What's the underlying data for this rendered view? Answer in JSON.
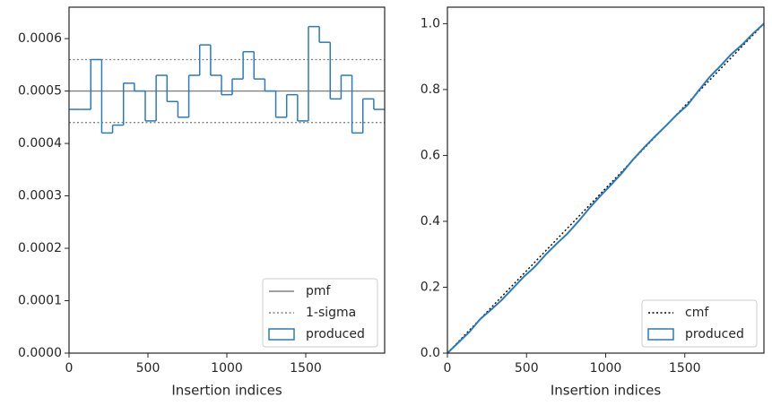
{
  "chart_data": [
    {
      "type": "histogram",
      "xlabel": "Insertion indices",
      "bins": [
        0,
        69,
        138,
        207,
        276,
        345,
        414,
        483,
        552,
        621,
        690,
        759,
        828,
        897,
        966,
        1034,
        1103,
        1172,
        1241,
        1310,
        1379,
        1448,
        1517,
        1586,
        1655,
        1724,
        1793,
        1862,
        1931,
        2000
      ],
      "series": [
        {
          "name": "produced",
          "color": "#2b7bba",
          "values": [
            0.000465,
            0.000465,
            0.00056,
            0.00042,
            0.000435,
            0.000515,
            0.0005,
            0.000443,
            0.00053,
            0.00048,
            0.00045,
            0.00053,
            0.000588,
            0.00053,
            0.000493,
            0.000523,
            0.000575,
            0.000523,
            0.0005,
            0.00045,
            0.000493,
            0.000443,
            0.000623,
            0.000593,
            0.000485,
            0.00053,
            0.00042,
            0.000485,
            0.000465
          ]
        }
      ],
      "reference_lines": [
        {
          "name": "pmf",
          "color": "#808080",
          "style": "solid",
          "y": [
            0.0005
          ]
        },
        {
          "name": "1-sigma",
          "color": "#808080",
          "style": "dotted",
          "y": [
            0.00056,
            0.00044
          ]
        }
      ],
      "xlim": [
        0,
        2000
      ],
      "xticks": [
        0,
        500,
        1000,
        1500
      ],
      "ylim": [
        0,
        0.00066
      ],
      "yticks": [
        {
          "value": 0,
          "label": "0.0000"
        },
        {
          "value": 0.0001,
          "label": "0.0001"
        },
        {
          "value": 0.0002,
          "label": "0.0002"
        },
        {
          "value": 0.0003,
          "label": "0.0003"
        },
        {
          "value": 0.0004,
          "label": "0.0004"
        },
        {
          "value": 0.0005,
          "label": "0.0005"
        },
        {
          "value": 0.0006,
          "label": "0.0006"
        }
      ],
      "legend": "lower right"
    },
    {
      "type": "line",
      "xlabel": "Insertion indices",
      "series": [
        {
          "name": "cmf",
          "color": "#000000",
          "style": "dotted",
          "x": [
            0,
            2000
          ],
          "values": [
            0,
            1
          ]
        },
        {
          "name": "produced",
          "color": "#2b7bba",
          "style": "box",
          "x": [
            0,
            69,
            138,
            207,
            276,
            345,
            414,
            483,
            552,
            621,
            690,
            759,
            828,
            897,
            966,
            1034,
            1103,
            1172,
            1241,
            1310,
            1379,
            1448,
            1517,
            1586,
            1655,
            1724,
            1793,
            1862,
            1931,
            2000
          ],
          "values": [
            0,
            0.032,
            0.064,
            0.103,
            0.132,
            0.162,
            0.197,
            0.232,
            0.262,
            0.299,
            0.332,
            0.363,
            0.4,
            0.44,
            0.477,
            0.511,
            0.547,
            0.587,
            0.623,
            0.657,
            0.689,
            0.723,
            0.753,
            0.796,
            0.837,
            0.871,
            0.907,
            0.936,
            0.97,
            1.0
          ]
        }
      ],
      "xlim": [
        0,
        2000
      ],
      "xticks": [
        0,
        500,
        1000,
        1500
      ],
      "ylim": [
        0,
        1.05
      ],
      "yticks": [
        {
          "value": 0,
          "label": "0.0"
        },
        0.2,
        0.4,
        0.6,
        0.8,
        {
          "value": 1,
          "label": "1.0"
        }
      ],
      "legend": "lower right"
    }
  ]
}
